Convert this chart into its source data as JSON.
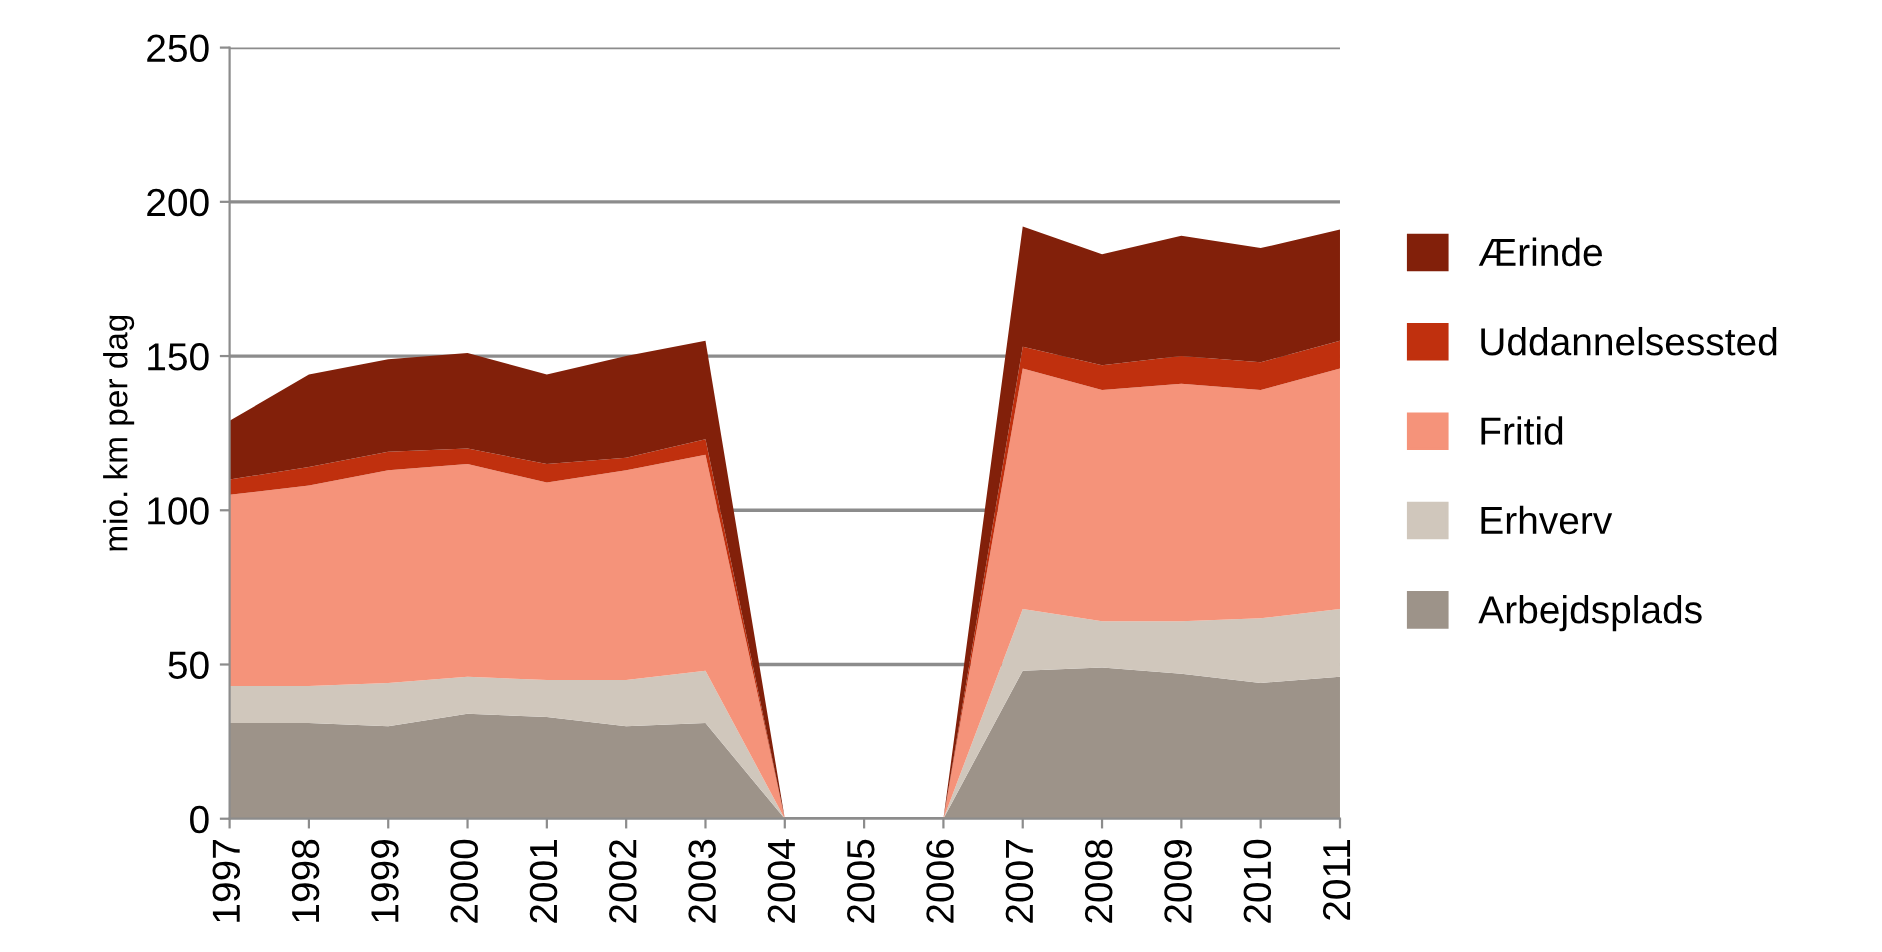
{
  "chart_data": {
    "type": "area",
    "stacked": true,
    "ylabel": "mio. km per dag",
    "categories": [
      "1997",
      "1998",
      "1999",
      "2000",
      "2001",
      "2002",
      "2003",
      "2004",
      "2005",
      "2006",
      "2007",
      "2008",
      "2009",
      "2010",
      "2011"
    ],
    "series": [
      {
        "name": "Arbejdsplads",
        "color": "#9d9389",
        "values": [
          31,
          31,
          30,
          34,
          33,
          30,
          31,
          0,
          0,
          0,
          48,
          49,
          47,
          44,
          46
        ]
      },
      {
        "name": "Erhverv",
        "color": "#d0c7bc",
        "values": [
          12,
          12,
          14,
          12,
          12,
          15,
          17,
          0,
          0,
          0,
          20,
          15,
          17,
          21,
          22
        ]
      },
      {
        "name": "Fritid",
        "color": "#f5937a",
        "values": [
          62,
          65,
          69,
          69,
          64,
          68,
          70,
          0,
          0,
          0,
          78,
          75,
          77,
          74,
          78
        ]
      },
      {
        "name": "Uddannelsessted",
        "color": "#c0300e",
        "values": [
          5,
          6,
          6,
          5,
          6,
          4,
          5,
          0,
          0,
          0,
          7,
          8,
          9,
          9,
          9
        ]
      },
      {
        "name": "Ærinde",
        "color": "#82200a",
        "values": [
          19,
          30,
          30,
          31,
          29,
          33,
          32,
          0,
          0,
          0,
          39,
          36,
          39,
          37,
          36
        ]
      }
    ],
    "ylim": [
      0,
      250
    ],
    "yticks": [
      0,
      50,
      100,
      150,
      200,
      250
    ],
    "grid": "y",
    "legend": "right"
  }
}
